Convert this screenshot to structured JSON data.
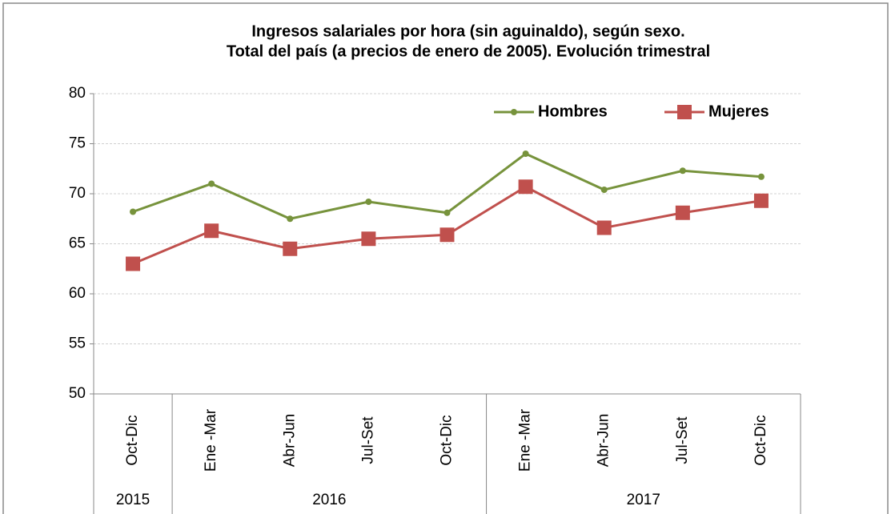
{
  "chart_data": {
    "type": "line",
    "title": [
      "Ingresos salariales por hora (sin aguinaldo), según sexo.",
      "Total del país (a precios de enero de 2005). Evolución trimestral"
    ],
    "categories": [
      "Oct-Dic",
      "Ene -Mar",
      "Abr-Jun",
      "Jul-Set",
      "Oct-Dic",
      "Ene -Mar",
      "Abr-Jun",
      "Jul-Set",
      "Oct-Dic"
    ],
    "year_groups": [
      {
        "label": "2015",
        "span": 1
      },
      {
        "label": "2016",
        "span": 4
      },
      {
        "label": "2017",
        "span": 4
      }
    ],
    "series": [
      {
        "name": "Hombres",
        "color": "#77933c",
        "marker": "circle",
        "values": [
          68.2,
          71.0,
          67.5,
          69.2,
          68.1,
          74.0,
          70.4,
          72.3,
          71.7
        ]
      },
      {
        "name": "Mujeres",
        "color": "#c0504d",
        "marker": "square",
        "values": [
          63.0,
          66.3,
          64.5,
          65.5,
          65.9,
          70.7,
          66.6,
          68.1,
          69.3
        ]
      }
    ],
    "ylim": [
      50,
      80
    ],
    "yticks": [
      50,
      55,
      60,
      65,
      70,
      75,
      80
    ],
    "grid": true,
    "legend": "top-right"
  }
}
